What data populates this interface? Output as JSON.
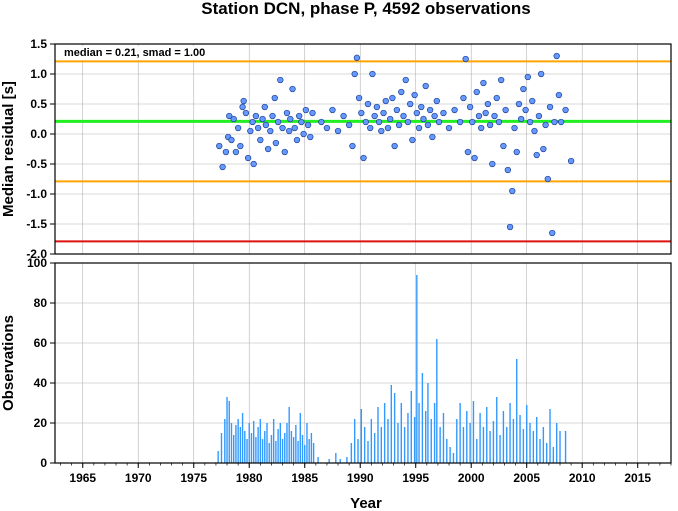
{
  "chart_data": [
    {
      "type": "scatter",
      "title": "Station DCN, phase P, 4592 observations",
      "ylabel": "Median residual [s]",
      "xlabel": "",
      "annotation": "median = 0.21, smad = 1.00",
      "xlim": [
        1962.5,
        2018.0
      ],
      "ylim": [
        -2.0,
        1.5
      ],
      "yticks": [
        1.5,
        1.0,
        0.5,
        0.0,
        -0.5,
        -1.0,
        -1.5,
        -2.0
      ],
      "ytick_labels": [
        "1.5",
        "1.0",
        "0.5",
        "0.0",
        "-0.5",
        "-1.0",
        "-1.5",
        "-2.0"
      ],
      "grid": true,
      "reference_lines": [
        {
          "y": 1.21,
          "color": "#ffa500"
        },
        {
          "y": 0.21,
          "color": "#22ee22"
        },
        {
          "y": -0.79,
          "color": "#ffa500"
        },
        {
          "y": -1.79,
          "color": "#dd1111"
        }
      ],
      "point_color": "#6699ff",
      "points": [
        [
          1977.3,
          -0.2
        ],
        [
          1977.6,
          -0.55
        ],
        [
          1977.9,
          -0.3
        ],
        [
          1978.1,
          -0.05
        ],
        [
          1978.2,
          0.3
        ],
        [
          1978.4,
          -0.1
        ],
        [
          1978.6,
          0.25
        ],
        [
          1978.8,
          -0.3
        ],
        [
          1979.0,
          0.1
        ],
        [
          1979.2,
          -0.2
        ],
        [
          1979.4,
          0.45
        ],
        [
          1979.5,
          0.55
        ],
        [
          1979.7,
          0.35
        ],
        [
          1979.9,
          -0.4
        ],
        [
          1980.1,
          0.05
        ],
        [
          1980.3,
          0.2
        ],
        [
          1980.4,
          -0.5
        ],
        [
          1980.6,
          0.3
        ],
        [
          1980.8,
          0.1
        ],
        [
          1981.0,
          -0.1
        ],
        [
          1981.2,
          0.25
        ],
        [
          1981.4,
          0.45
        ],
        [
          1981.5,
          0.15
        ],
        [
          1981.7,
          -0.25
        ],
        [
          1981.9,
          0.05
        ],
        [
          1982.1,
          0.3
        ],
        [
          1982.3,
          0.6
        ],
        [
          1982.4,
          -0.15
        ],
        [
          1982.6,
          0.2
        ],
        [
          1982.8,
          0.9
        ],
        [
          1983.0,
          0.1
        ],
        [
          1983.2,
          -0.3
        ],
        [
          1983.4,
          0.35
        ],
        [
          1983.6,
          0.05
        ],
        [
          1983.7,
          0.25
        ],
        [
          1983.9,
          0.75
        ],
        [
          1984.1,
          0.1
        ],
        [
          1984.3,
          -0.1
        ],
        [
          1984.5,
          0.3
        ],
        [
          1984.7,
          0.2
        ],
        [
          1984.9,
          0.0
        ],
        [
          1985.1,
          0.4
        ],
        [
          1985.3,
          0.15
        ],
        [
          1985.5,
          -0.05
        ],
        [
          1985.7,
          0.35
        ],
        [
          1986.5,
          0.2
        ],
        [
          1987.0,
          0.1
        ],
        [
          1987.5,
          0.4
        ],
        [
          1988.0,
          0.05
        ],
        [
          1988.5,
          0.3
        ],
        [
          1989.0,
          0.15
        ],
        [
          1989.3,
          -0.2
        ],
        [
          1989.5,
          1.0
        ],
        [
          1989.7,
          1.27
        ],
        [
          1989.9,
          0.6
        ],
        [
          1990.1,
          0.35
        ],
        [
          1990.3,
          -0.4
        ],
        [
          1990.5,
          0.2
        ],
        [
          1990.7,
          0.5
        ],
        [
          1990.9,
          0.1
        ],
        [
          1991.1,
          1.0
        ],
        [
          1991.3,
          0.3
        ],
        [
          1991.5,
          0.45
        ],
        [
          1991.7,
          0.2
        ],
        [
          1991.9,
          0.05
        ],
        [
          1992.1,
          0.35
        ],
        [
          1992.3,
          0.55
        ],
        [
          1992.5,
          0.1
        ],
        [
          1992.7,
          0.25
        ],
        [
          1992.9,
          0.6
        ],
        [
          1993.1,
          -0.2
        ],
        [
          1993.3,
          0.4
        ],
        [
          1993.5,
          0.15
        ],
        [
          1993.7,
          0.7
        ],
        [
          1993.9,
          0.3
        ],
        [
          1994.1,
          0.9
        ],
        [
          1994.3,
          0.2
        ],
        [
          1994.5,
          0.5
        ],
        [
          1994.7,
          -0.1
        ],
        [
          1994.9,
          0.65
        ],
        [
          1995.1,
          0.35
        ],
        [
          1995.3,
          0.1
        ],
        [
          1995.5,
          0.45
        ],
        [
          1995.7,
          0.25
        ],
        [
          1995.9,
          0.8
        ],
        [
          1996.1,
          0.15
        ],
        [
          1996.3,
          0.4
        ],
        [
          1996.5,
          -0.05
        ],
        [
          1996.7,
          0.3
        ],
        [
          1996.9,
          0.55
        ],
        [
          1997.1,
          0.2
        ],
        [
          1997.5,
          0.35
        ],
        [
          1998.0,
          0.1
        ],
        [
          1998.5,
          0.4
        ],
        [
          1999.0,
          0.2
        ],
        [
          1999.3,
          0.6
        ],
        [
          1999.5,
          1.25
        ],
        [
          1999.7,
          -0.3
        ],
        [
          1999.9,
          0.45
        ],
        [
          2000.1,
          0.2
        ],
        [
          2000.3,
          -0.4
        ],
        [
          2000.5,
          0.7
        ],
        [
          2000.7,
          0.3
        ],
        [
          2000.9,
          0.1
        ],
        [
          2001.1,
          0.85
        ],
        [
          2001.3,
          0.35
        ],
        [
          2001.5,
          0.5
        ],
        [
          2001.7,
          0.15
        ],
        [
          2001.9,
          -0.5
        ],
        [
          2002.1,
          0.3
        ],
        [
          2002.3,
          0.6
        ],
        [
          2002.5,
          0.2
        ],
        [
          2002.7,
          0.9
        ],
        [
          2002.9,
          -0.2
        ],
        [
          2003.1,
          0.4
        ],
        [
          2003.3,
          -0.6
        ],
        [
          2003.5,
          -1.55
        ],
        [
          2003.7,
          -0.95
        ],
        [
          2003.9,
          0.1
        ],
        [
          2004.1,
          -0.3
        ],
        [
          2004.3,
          0.5
        ],
        [
          2004.5,
          0.25
        ],
        [
          2004.7,
          0.75
        ],
        [
          2004.9,
          0.4
        ],
        [
          2005.1,
          0.95
        ],
        [
          2005.3,
          0.2
        ],
        [
          2005.5,
          0.55
        ],
        [
          2005.7,
          0.05
        ],
        [
          2005.9,
          -0.35
        ],
        [
          2006.1,
          0.3
        ],
        [
          2006.3,
          1.0
        ],
        [
          2006.5,
          -0.25
        ],
        [
          2006.7,
          0.15
        ],
        [
          2006.9,
          -0.75
        ],
        [
          2007.1,
          0.45
        ],
        [
          2007.3,
          -1.65
        ],
        [
          2007.5,
          0.2
        ],
        [
          2007.7,
          1.3
        ],
        [
          2007.9,
          0.65
        ],
        [
          2008.1,
          0.2
        ],
        [
          2008.5,
          0.4
        ],
        [
          2009.0,
          -0.45
        ]
      ]
    },
    {
      "type": "bar",
      "xlabel": "Year",
      "ylabel": "Observations",
      "xlim": [
        1962.5,
        2018.0
      ],
      "ylim": [
        0,
        100
      ],
      "xticks": [
        1965,
        1970,
        1975,
        1980,
        1985,
        1990,
        1995,
        2000,
        2005,
        2010,
        2015
      ],
      "xtick_labels": [
        "1965",
        "1970",
        "1975",
        "1980",
        "1985",
        "1990",
        "1995",
        "2000",
        "2005",
        "2010",
        "2015"
      ],
      "yticks": [
        0,
        20,
        40,
        60,
        80,
        100
      ],
      "ytick_labels": [
        "0",
        "20",
        "40",
        "60",
        "80",
        "100"
      ],
      "grid": true,
      "bar_color": "#3399ff",
      "bars": [
        [
          1977.2,
          6
        ],
        [
          1977.5,
          15
        ],
        [
          1977.8,
          22
        ],
        [
          1978.0,
          33
        ],
        [
          1978.2,
          31
        ],
        [
          1978.4,
          20
        ],
        [
          1978.6,
          14
        ],
        [
          1978.8,
          19
        ],
        [
          1979.0,
          22
        ],
        [
          1979.2,
          18
        ],
        [
          1979.4,
          25
        ],
        [
          1979.6,
          16
        ],
        [
          1979.8,
          12
        ],
        [
          1980.0,
          20
        ],
        [
          1980.2,
          15
        ],
        [
          1980.4,
          21
        ],
        [
          1980.6,
          13
        ],
        [
          1980.8,
          18
        ],
        [
          1981.0,
          22
        ],
        [
          1981.2,
          12
        ],
        [
          1981.4,
          16
        ],
        [
          1981.6,
          20
        ],
        [
          1981.8,
          10
        ],
        [
          1982.0,
          14
        ],
        [
          1982.2,
          22
        ],
        [
          1982.4,
          11
        ],
        [
          1982.6,
          17
        ],
        [
          1982.8,
          20
        ],
        [
          1983.0,
          12
        ],
        [
          1983.2,
          15
        ],
        [
          1983.4,
          20
        ],
        [
          1983.6,
          28
        ],
        [
          1983.8,
          16
        ],
        [
          1984.0,
          13
        ],
        [
          1984.2,
          19
        ],
        [
          1984.4,
          11
        ],
        [
          1984.6,
          25
        ],
        [
          1984.8,
          14
        ],
        [
          1985.0,
          9
        ],
        [
          1985.2,
          20
        ],
        [
          1985.4,
          12
        ],
        [
          1985.6,
          15
        ],
        [
          1985.8,
          10
        ],
        [
          1986.2,
          3
        ],
        [
          1987.2,
          2
        ],
        [
          1987.8,
          5
        ],
        [
          1988.2,
          2
        ],
        [
          1988.8,
          3
        ],
        [
          1989.2,
          10
        ],
        [
          1989.5,
          22
        ],
        [
          1989.8,
          12
        ],
        [
          1990.1,
          27
        ],
        [
          1990.4,
          18
        ],
        [
          1990.7,
          11
        ],
        [
          1991.0,
          22
        ],
        [
          1991.3,
          15
        ],
        [
          1991.6,
          28
        ],
        [
          1991.9,
          18
        ],
        [
          1992.2,
          30
        ],
        [
          1992.5,
          22
        ],
        [
          1992.8,
          39
        ],
        [
          1993.1,
          35
        ],
        [
          1993.4,
          20
        ],
        [
          1993.7,
          30
        ],
        [
          1994.0,
          18
        ],
        [
          1994.3,
          25
        ],
        [
          1994.6,
          36
        ],
        [
          1994.9,
          23
        ],
        [
          1995.1,
          94
        ],
        [
          1995.3,
          30
        ],
        [
          1995.6,
          45
        ],
        [
          1995.9,
          26
        ],
        [
          1996.1,
          40
        ],
        [
          1996.4,
          22
        ],
        [
          1996.7,
          30
        ],
        [
          1996.9,
          62
        ],
        [
          1997.2,
          18
        ],
        [
          1997.5,
          25
        ],
        [
          1997.8,
          12
        ],
        [
          1998.1,
          8
        ],
        [
          1998.4,
          5
        ],
        [
          1998.7,
          22
        ],
        [
          1999.0,
          30
        ],
        [
          1999.3,
          18
        ],
        [
          1999.6,
          26
        ],
        [
          1999.9,
          20
        ],
        [
          2000.2,
          31
        ],
        [
          2000.5,
          12
        ],
        [
          2000.8,
          25
        ],
        [
          2001.1,
          18
        ],
        [
          2001.4,
          28
        ],
        [
          2001.7,
          16
        ],
        [
          2002.0,
          21
        ],
        [
          2002.3,
          33
        ],
        [
          2002.6,
          14
        ],
        [
          2002.9,
          26
        ],
        [
          2003.2,
          18
        ],
        [
          2003.5,
          30
        ],
        [
          2003.8,
          22
        ],
        [
          2004.1,
          52
        ],
        [
          2004.4,
          24
        ],
        [
          2004.7,
          17
        ],
        [
          2005.0,
          29
        ],
        [
          2005.3,
          20
        ],
        [
          2005.6,
          16
        ],
        [
          2005.9,
          23
        ],
        [
          2006.2,
          12
        ],
        [
          2006.5,
          18
        ],
        [
          2006.8,
          10
        ],
        [
          2007.1,
          27
        ],
        [
          2007.4,
          8
        ],
        [
          2007.7,
          20
        ],
        [
          2008.0,
          16
        ],
        [
          2008.5,
          16
        ]
      ]
    }
  ]
}
